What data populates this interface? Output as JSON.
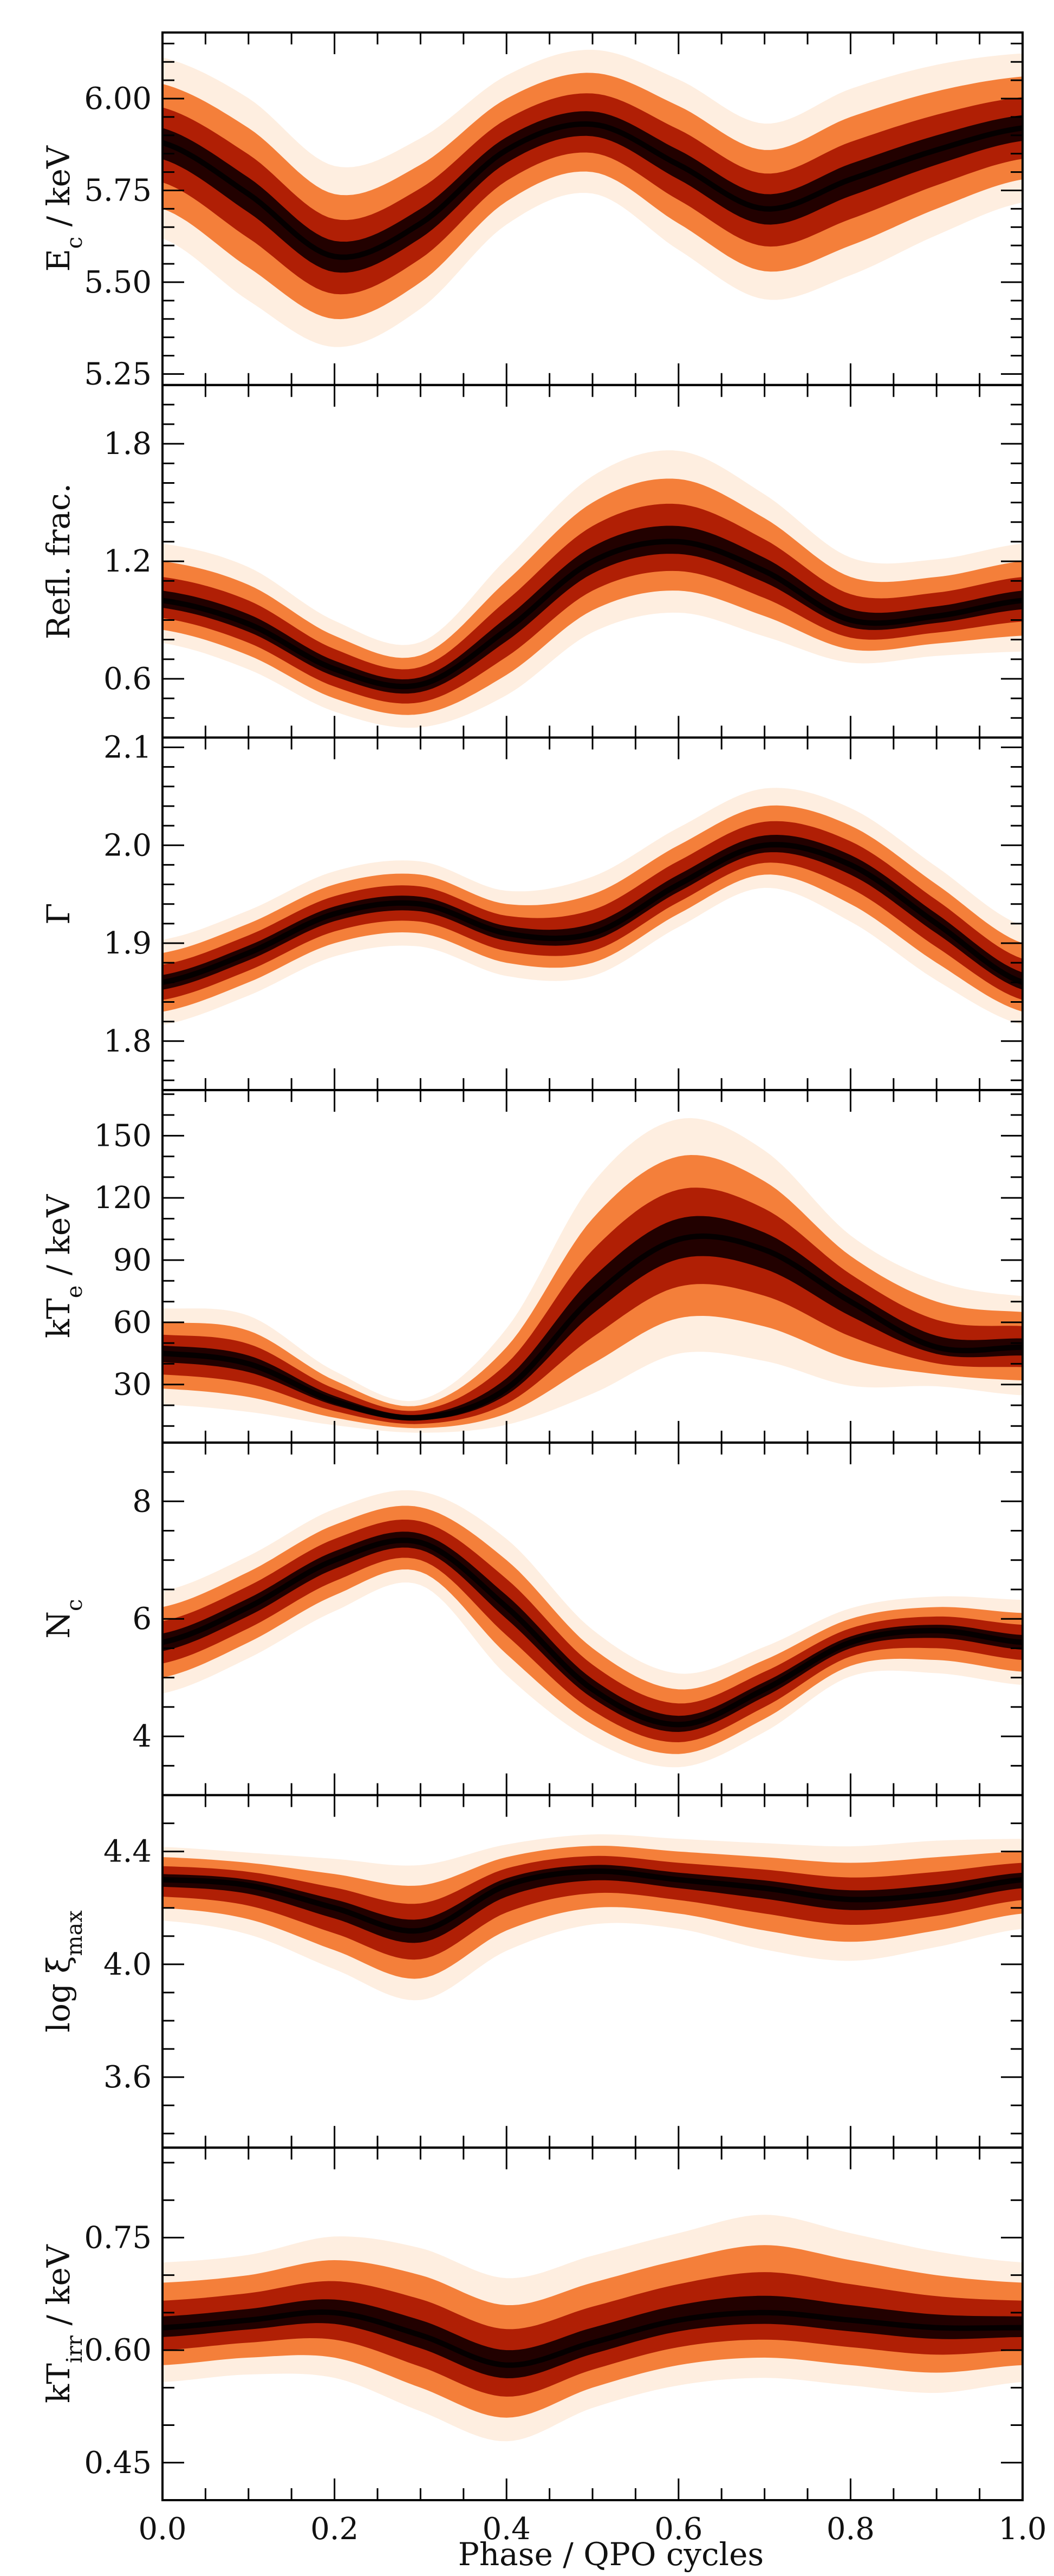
{
  "chart_data": [
    {
      "type": "area",
      "ylabel": "E",
      "ylabel_sub": "c",
      "ylabel_suffix": " / keV",
      "ylim": [
        5.22,
        6.18
      ],
      "yticks": [
        5.25,
        5.5,
        5.75,
        6.0
      ],
      "ytick_labels": [
        "5.25",
        "5.50",
        "5.75",
        "6.00"
      ],
      "minor_step": 0.05,
      "x": [
        0.0,
        0.1,
        0.2,
        0.3,
        0.4,
        0.5,
        0.6,
        0.7,
        0.8,
        0.9,
        1.0
      ],
      "median": [
        5.88,
        5.74,
        5.57,
        5.66,
        5.86,
        5.93,
        5.82,
        5.7,
        5.78,
        5.86,
        5.92
      ],
      "band_lo": [
        5.7,
        5.54,
        5.4,
        5.5,
        5.72,
        5.8,
        5.66,
        5.53,
        5.6,
        5.7,
        5.78
      ],
      "band_hi": [
        6.04,
        5.92,
        5.74,
        5.82,
        6.0,
        6.07,
        5.98,
        5.86,
        5.95,
        6.02,
        6.06
      ]
    },
    {
      "type": "area",
      "ylabel": "Refl. frac.",
      "ylim": [
        0.3,
        2.1
      ],
      "yticks": [
        0.6,
        1.2,
        1.8
      ],
      "ytick_labels": [
        "0.6",
        "1.2",
        "1.8"
      ],
      "minor_step": 0.1,
      "x": [
        0.0,
        0.1,
        0.2,
        0.3,
        0.4,
        0.5,
        0.6,
        0.7,
        0.8,
        0.9,
        1.0
      ],
      "median": [
        1.0,
        0.88,
        0.65,
        0.57,
        0.85,
        1.2,
        1.3,
        1.15,
        0.9,
        0.92,
        1.0
      ],
      "band_lo": [
        0.85,
        0.72,
        0.5,
        0.42,
        0.62,
        0.95,
        1.05,
        0.92,
        0.75,
        0.78,
        0.82
      ],
      "band_hi": [
        1.2,
        1.08,
        0.82,
        0.72,
        1.1,
        1.5,
        1.62,
        1.42,
        1.12,
        1.12,
        1.2
      ]
    },
    {
      "type": "area",
      "ylabel": "Γ",
      "ylim": [
        1.75,
        2.11
      ],
      "yticks": [
        1.8,
        1.9,
        2.0,
        2.1
      ],
      "ytick_labels": [
        "1.8",
        "1.9",
        "2.0",
        "2.1"
      ],
      "minor_step": 0.02,
      "x": [
        0.0,
        0.1,
        0.2,
        0.3,
        0.4,
        0.5,
        0.6,
        0.7,
        0.8,
        0.9,
        1.0
      ],
      "median": [
        1.86,
        1.89,
        1.93,
        1.94,
        1.91,
        1.91,
        1.96,
        2.0,
        1.98,
        1.92,
        1.86
      ],
      "band_lo": [
        1.83,
        1.86,
        1.9,
        1.91,
        1.88,
        1.88,
        1.93,
        1.97,
        1.94,
        1.88,
        1.83
      ],
      "band_hi": [
        1.89,
        1.92,
        1.96,
        1.97,
        1.94,
        1.95,
        2.0,
        2.04,
        2.02,
        1.96,
        1.9
      ]
    },
    {
      "type": "area",
      "ylabel": "kT",
      "ylabel_sub": "e",
      "ylabel_suffix": " / keV",
      "ylim": [
        2,
        172
      ],
      "yticks": [
        30,
        60,
        90,
        120,
        150
      ],
      "ytick_labels": [
        "30",
        "60",
        "90",
        "120",
        "150"
      ],
      "minor_step": 10,
      "x": [
        0.0,
        0.1,
        0.2,
        0.3,
        0.4,
        0.5,
        0.6,
        0.7,
        0.8,
        0.9,
        1.0
      ],
      "median": [
        45,
        40,
        22,
        14,
        28,
        72,
        100,
        95,
        70,
        48,
        48
      ],
      "band_lo": [
        28,
        24,
        14,
        9,
        16,
        40,
        62,
        58,
        42,
        35,
        32
      ],
      "band_hi": [
        60,
        56,
        32,
        20,
        48,
        110,
        140,
        128,
        92,
        70,
        65
      ]
    },
    {
      "type": "area",
      "ylabel": "N",
      "ylabel_sub": "c",
      "ylim": [
        3.0,
        9.0
      ],
      "yticks": [
        4,
        6,
        8
      ],
      "ytick_labels": [
        "4",
        "6",
        "8"
      ],
      "minor_step": 0.5,
      "x": [
        0.0,
        0.1,
        0.2,
        0.3,
        0.4,
        0.5,
        0.6,
        0.7,
        0.8,
        0.9,
        1.0
      ],
      "median": [
        5.6,
        6.2,
        7.0,
        7.3,
        6.2,
        4.8,
        4.2,
        4.8,
        5.6,
        5.8,
        5.6
      ],
      "band_lo": [
        5.0,
        5.6,
        6.4,
        6.8,
        5.4,
        4.2,
        3.7,
        4.3,
        5.2,
        5.3,
        5.1
      ],
      "band_hi": [
        6.2,
        6.8,
        7.6,
        7.9,
        7.0,
        5.5,
        4.8,
        5.3,
        6.0,
        6.2,
        6.1
      ]
    },
    {
      "type": "area",
      "ylabel": "log ξ",
      "ylabel_sub": "max",
      "ylim": [
        3.35,
        4.6
      ],
      "yticks": [
        3.6,
        4.0,
        4.4
      ],
      "ytick_labels": [
        "3.6",
        "4.0",
        "4.4"
      ],
      "minor_step": 0.1,
      "x": [
        0.0,
        0.1,
        0.2,
        0.3,
        0.4,
        0.5,
        0.6,
        0.7,
        0.8,
        0.9,
        1.0
      ],
      "median": [
        4.3,
        4.28,
        4.2,
        4.12,
        4.28,
        4.33,
        4.3,
        4.27,
        4.23,
        4.25,
        4.3
      ],
      "band_lo": [
        4.2,
        4.16,
        4.05,
        3.95,
        4.12,
        4.2,
        4.18,
        4.12,
        4.08,
        4.12,
        4.18
      ],
      "band_hi": [
        4.38,
        4.36,
        4.32,
        4.28,
        4.38,
        4.42,
        4.4,
        4.38,
        4.36,
        4.38,
        4.4
      ]
    },
    {
      "type": "area",
      "ylabel": "kT",
      "ylabel_sub": "irr",
      "ylabel_suffix": " / keV",
      "ylim": [
        0.4,
        0.87
      ],
      "yticks": [
        0.45,
        0.6,
        0.75
      ],
      "ytick_labels": [
        "0.45",
        "0.60",
        "0.75"
      ],
      "minor_step": 0.05,
      "x": [
        0.0,
        0.1,
        0.2,
        0.3,
        0.4,
        0.5,
        0.6,
        0.7,
        0.8,
        0.9,
        1.0
      ],
      "median": [
        0.63,
        0.64,
        0.65,
        0.62,
        0.58,
        0.61,
        0.64,
        0.65,
        0.64,
        0.63,
        0.63
      ],
      "band_lo": [
        0.58,
        0.59,
        0.59,
        0.55,
        0.51,
        0.55,
        0.58,
        0.59,
        0.58,
        0.57,
        0.58
      ],
      "band_hi": [
        0.69,
        0.7,
        0.72,
        0.7,
        0.66,
        0.69,
        0.72,
        0.74,
        0.72,
        0.7,
        0.69
      ]
    }
  ],
  "x_axis": {
    "label": "Phase / QPO cycles",
    "xlim": [
      0.0,
      1.0
    ],
    "ticks": [
      0.0,
      0.2,
      0.4,
      0.6,
      0.8,
      1.0
    ],
    "tick_labels": [
      "0.0",
      "0.2",
      "0.4",
      "0.6",
      "0.8",
      "1.0"
    ],
    "minor_step": 0.05
  },
  "colors": {
    "outer": "#fde3cc",
    "mid": "#f26b1c",
    "inner": "#a81500",
    "core": "#1a0000"
  }
}
